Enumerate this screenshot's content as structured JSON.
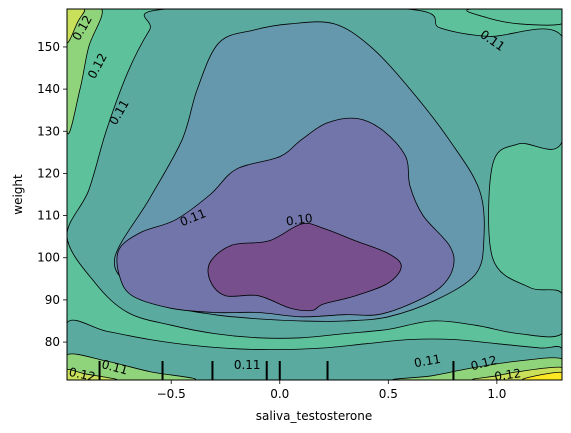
{
  "chart_data": {
    "type": "contour",
    "title": "",
    "xlabel": "saliva_testosterone",
    "ylabel": "weight",
    "xlim": [
      -0.98,
      1.3
    ],
    "ylim": [
      71,
      159
    ],
    "xticks": [
      {
        "value": -0.5,
        "label": "−0.5"
      },
      {
        "value": 0.0,
        "label": "0.0"
      },
      {
        "value": 0.5,
        "label": "0.5"
      },
      {
        "value": 1.0,
        "label": "1.0"
      }
    ],
    "yticks": [
      {
        "value": 80,
        "label": "80"
      },
      {
        "value": 90,
        "label": "90"
      },
      {
        "value": 100,
        "label": "100"
      },
      {
        "value": 110,
        "label": "110"
      },
      {
        "value": 120,
        "label": "120"
      },
      {
        "value": 130,
        "label": "130"
      },
      {
        "value": 140,
        "label": "140"
      },
      {
        "value": 150,
        "label": "150"
      }
    ],
    "levels_colors": [
      "#440154",
      "#6a4c93",
      "#7175aa",
      "#6597ad",
      "#5aaa9f",
      "#5dc19b",
      "#8fd47a",
      "#c8e05a",
      "#fde725"
    ],
    "regions": [
      {
        "name": "band-0",
        "color": "#5dc19b",
        "points": [
          [
            -0.98,
            71
          ],
          [
            1.3,
            71
          ],
          [
            1.3,
            159
          ],
          [
            -0.98,
            159
          ]
        ]
      },
      {
        "name": "band-1",
        "color": "#5aaa9f",
        "points": [
          [
            -0.98,
            71
          ],
          [
            1.3,
            71
          ],
          [
            1.3,
            78.4
          ],
          [
            1.2,
            78.6
          ],
          [
            1.0,
            79.6
          ],
          [
            0.8,
            80.6
          ],
          [
            0.6,
            80.6
          ],
          [
            0.4,
            79.6
          ],
          [
            0.2,
            78.6
          ],
          [
            0.0,
            78.2
          ],
          [
            -0.2,
            78.4
          ],
          [
            -0.4,
            79.2
          ],
          [
            -0.6,
            80.6
          ],
          [
            -0.8,
            82.6
          ],
          [
            -0.98,
            84.6
          ]
        ]
      },
      {
        "name": "band-2",
        "color": "#5aaa9f",
        "points": [
          [
            -0.98,
            105
          ],
          [
            -0.88,
            116
          ],
          [
            -0.8,
            130
          ],
          [
            -0.7,
            144
          ],
          [
            -0.6,
            154
          ],
          [
            -0.52,
            159
          ],
          [
            0.58,
            159
          ],
          [
            0.74,
            154.5
          ],
          [
            0.96,
            152.5
          ],
          [
            1.3,
            152.5
          ],
          [
            1.3,
            127.5
          ],
          [
            1.1,
            127
          ],
          [
            0.98,
            122
          ],
          [
            0.98,
            100
          ],
          [
            1.15,
            93
          ],
          [
            1.3,
            91.5
          ],
          [
            1.3,
            82
          ],
          [
            1.1,
            82
          ],
          [
            0.9,
            84
          ],
          [
            0.7,
            85
          ],
          [
            0.5,
            83
          ],
          [
            0.3,
            82
          ],
          [
            0.1,
            81
          ],
          [
            -0.1,
            81
          ],
          [
            -0.3,
            82
          ],
          [
            -0.5,
            84
          ],
          [
            -0.7,
            87
          ],
          [
            -0.85,
            94
          ]
        ]
      },
      {
        "name": "band-3",
        "color": "#6597ad",
        "points": [
          [
            -0.76,
            100
          ],
          [
            -0.6,
            114
          ],
          [
            -0.45,
            128
          ],
          [
            -0.38,
            140
          ],
          [
            -0.28,
            151
          ],
          [
            -0.12,
            154
          ],
          [
            0.05,
            155.5
          ],
          [
            0.25,
            155.5
          ],
          [
            0.42,
            150
          ],
          [
            0.6,
            140
          ],
          [
            0.78,
            128
          ],
          [
            0.92,
            116
          ],
          [
            0.94,
            104
          ],
          [
            0.9,
            96
          ],
          [
            0.72,
            90
          ],
          [
            0.5,
            86
          ],
          [
            0.3,
            85
          ],
          [
            0.1,
            85
          ],
          [
            -0.1,
            85.5
          ],
          [
            -0.3,
            86.5
          ],
          [
            -0.5,
            88.5
          ],
          [
            -0.68,
            93
          ]
        ]
      },
      {
        "name": "band-4",
        "color": "#7175aa",
        "points": [
          [
            -0.74,
            102
          ],
          [
            -0.64,
            106
          ],
          [
            -0.48,
            109
          ],
          [
            -0.32,
            115
          ],
          [
            -0.2,
            121
          ],
          [
            0.0,
            124
          ],
          [
            0.1,
            128
          ],
          [
            0.22,
            132
          ],
          [
            0.36,
            133
          ],
          [
            0.48,
            130
          ],
          [
            0.58,
            124
          ],
          [
            0.6,
            117
          ],
          [
            0.66,
            110
          ],
          [
            0.78,
            103
          ],
          [
            0.8,
            98
          ],
          [
            0.74,
            93
          ],
          [
            0.6,
            89
          ],
          [
            0.45,
            86.5
          ],
          [
            0.3,
            86.5
          ],
          [
            0.1,
            86
          ],
          [
            -0.1,
            87
          ],
          [
            -0.3,
            87
          ],
          [
            -0.5,
            88
          ],
          [
            -0.68,
            91
          ],
          [
            -0.74,
            96
          ]
        ]
      },
      {
        "name": "band-5",
        "color": "#764f8c",
        "points": [
          [
            -0.32,
            99
          ],
          [
            -0.22,
            103
          ],
          [
            -0.05,
            104
          ],
          [
            0.1,
            108
          ],
          [
            0.2,
            107
          ],
          [
            0.35,
            104
          ],
          [
            0.5,
            101
          ],
          [
            0.56,
            98
          ],
          [
            0.5,
            94
          ],
          [
            0.35,
            91
          ],
          [
            0.2,
            89
          ],
          [
            0.15,
            87.5
          ],
          [
            0.05,
            88
          ],
          [
            -0.1,
            91
          ],
          [
            -0.25,
            91
          ],
          [
            -0.32,
            94.5
          ]
        ]
      },
      {
        "name": "corner-tl-1",
        "color": "#8fd47a",
        "points": [
          [
            -0.98,
            130
          ],
          [
            -0.92,
            140
          ],
          [
            -0.88,
            150
          ],
          [
            -0.82,
            159
          ],
          [
            -0.98,
            159
          ]
        ]
      },
      {
        "name": "corner-tl-2",
        "color": "#c8e05a",
        "points": [
          [
            -0.98,
            151
          ],
          [
            -0.93,
            156
          ],
          [
            -0.9,
            159
          ],
          [
            -0.98,
            159
          ]
        ]
      },
      {
        "name": "corner-bl-1",
        "color": "#8fd47a",
        "points": [
          [
            -0.98,
            71
          ],
          [
            -0.4,
            71
          ],
          [
            -0.6,
            73
          ],
          [
            -0.8,
            75.5
          ],
          [
            -0.98,
            77
          ]
        ]
      },
      {
        "name": "corner-bl-2",
        "color": "#c8e05a",
        "points": [
          [
            -0.98,
            71
          ],
          [
            -0.75,
            71
          ],
          [
            -0.9,
            72.5
          ],
          [
            -0.98,
            73.5
          ]
        ]
      },
      {
        "name": "corner-br-1",
        "color": "#8fd47a",
        "points": [
          [
            0.55,
            71
          ],
          [
            1.3,
            71
          ],
          [
            1.3,
            76
          ],
          [
            1.1,
            75.5
          ],
          [
            0.9,
            74
          ],
          [
            0.7,
            72
          ]
        ]
      },
      {
        "name": "corner-br-2",
        "color": "#c8e05a",
        "points": [
          [
            0.9,
            71
          ],
          [
            1.3,
            71
          ],
          [
            1.3,
            74
          ],
          [
            1.1,
            73
          ],
          [
            1.0,
            72
          ]
        ]
      },
      {
        "name": "corner-br-3",
        "color": "#fde725",
        "points": [
          [
            1.12,
            71
          ],
          [
            1.3,
            71
          ],
          [
            1.3,
            72.8
          ],
          [
            1.2,
            72.2
          ]
        ]
      },
      {
        "name": "corner-tr-1",
        "color": "#5dc19b",
        "points": [
          [
            0.88,
            159
          ],
          [
            1.3,
            159
          ],
          [
            1.3,
            155.5
          ],
          [
            1.1,
            155.5
          ],
          [
            0.95,
            157
          ]
        ]
      }
    ],
    "contour_labels": [
      {
        "text": "0.12",
        "x": -0.91,
        "y": 154.5,
        "angle": -60
      },
      {
        "text": "0.12",
        "x": -0.84,
        "y": 145.5,
        "angle": -62
      },
      {
        "text": "0.11",
        "x": -0.74,
        "y": 134.5,
        "angle": -60
      },
      {
        "text": "0.11",
        "x": 0.98,
        "y": 151.5,
        "angle": 35
      },
      {
        "text": "0.11",
        "x": -0.4,
        "y": 109.5,
        "angle": -22
      },
      {
        "text": "0.10",
        "x": 0.09,
        "y": 109,
        "angle": -8
      },
      {
        "text": "0.11",
        "x": -0.76,
        "y": 74,
        "angle": 15
      },
      {
        "text": "0.11",
        "x": -0.15,
        "y": 74.5,
        "angle": 0
      },
      {
        "text": "0.11",
        "x": 0.68,
        "y": 75.5,
        "angle": -10
      },
      {
        "text": "0.12",
        "x": 0.94,
        "y": 75,
        "angle": -15
      },
      {
        "text": "0.12",
        "x": 1.05,
        "y": 72.2,
        "angle": -8
      },
      {
        "text": "0.12",
        "x": -0.91,
        "y": 72.3,
        "angle": 12
      }
    ],
    "rug_x": [
      -0.83,
      -0.54,
      -0.31,
      -0.06,
      0.0,
      0.22,
      0.8
    ],
    "grid": false
  }
}
